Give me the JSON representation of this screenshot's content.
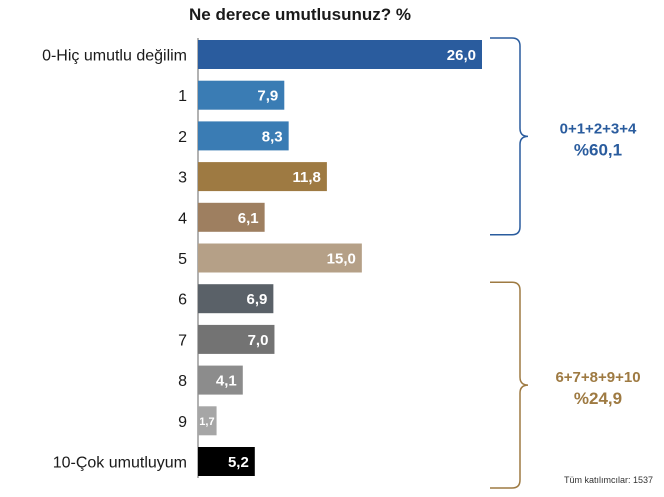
{
  "chart_data": {
    "type": "bar",
    "orientation": "horizontal",
    "title": "Ne derece umutlusunuz? %",
    "categories": [
      "0-Hiç umutlu değilim",
      "1",
      "2",
      "3",
      "4",
      "5",
      "6",
      "7",
      "8",
      "9",
      "10-Çok umutluyum"
    ],
    "values": [
      26.0,
      7.9,
      8.3,
      11.8,
      6.1,
      15.0,
      6.9,
      7.0,
      4.1,
      1.7,
      5.2
    ],
    "value_labels": [
      "26,0",
      "7,9",
      "8,3",
      "11,8",
      "6,1",
      "15,0",
      "6,9",
      "7,0",
      "4,1",
      "1,7",
      "5,2"
    ],
    "colors": [
      "#2a5c9e",
      "#3a7cb4",
      "#3a7cb4",
      "#9e7a42",
      "#9e7f60",
      "#b5a087",
      "#5a6168",
      "#737373",
      "#8c8c8c",
      "#a6a6a6",
      "#000000"
    ],
    "groups": [
      {
        "label": "0+1+2+3+4",
        "total": "%60,1",
        "from": 0,
        "to": 4,
        "color": "#2a5c9e"
      },
      {
        "label": "6+7+8+9+10",
        "total": "%24,9",
        "from": 6,
        "to": 10,
        "color": "#9e7a42"
      }
    ],
    "note": "Tüm katılımcılar: 1537",
    "xlim": [
      0,
      26
    ]
  }
}
